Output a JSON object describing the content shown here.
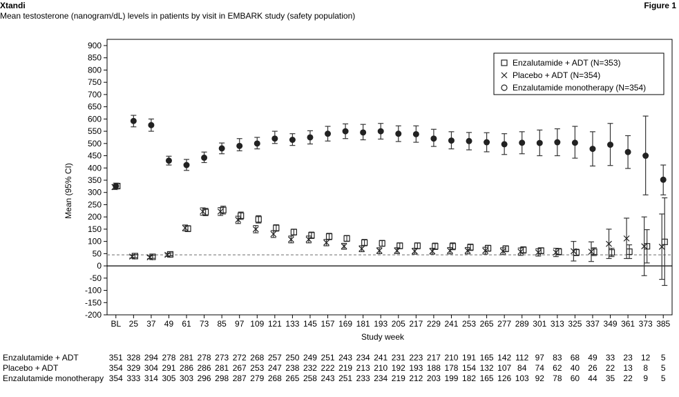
{
  "header": {
    "brand": "Xtandi",
    "subtitle": "Mean testosterone (nanogram/dL) levels in patients by visit in EMBARK study (safety population)",
    "figure_label": "Figure 1"
  },
  "chart_data": {
    "type": "scatter",
    "xlabel": "Study week",
    "ylabel": "Mean (95% CI)",
    "ylim": [
      -200,
      900
    ],
    "yticks": [
      900,
      850,
      800,
      750,
      700,
      650,
      600,
      550,
      500,
      450,
      400,
      350,
      300,
      250,
      200,
      150,
      100,
      50,
      0,
      -50,
      -100,
      -150,
      -200
    ],
    "xtick_labels": [
      "BL",
      "25",
      "37",
      "49",
      "61",
      "73",
      "85",
      "97",
      "109",
      "121",
      "133",
      "145",
      "157",
      "169",
      "181",
      "193",
      "205",
      "217",
      "229",
      "241",
      "253",
      "265",
      "277",
      "289",
      "301",
      "313",
      "325",
      "337",
      "349",
      "361",
      "373",
      "385"
    ],
    "x_positions": [
      13,
      25,
      37,
      49,
      61,
      73,
      85,
      97,
      109,
      121,
      133,
      145,
      157,
      169,
      181,
      193,
      205,
      217,
      229,
      241,
      253,
      265,
      277,
      289,
      301,
      313,
      325,
      337,
      349,
      361,
      373,
      385
    ],
    "reference_line": 45,
    "grid": false,
    "legend_position": "top-right",
    "series": [
      {
        "name": "Enzalutamide + ADT (N=353)",
        "marker": "square",
        "mean": [
          326,
          40,
          37,
          47,
          152,
          220,
          228,
          205,
          190,
          155,
          138,
          125,
          120,
          112,
          95,
          92,
          82,
          82,
          80,
          80,
          76,
          72,
          70,
          65,
          62,
          58,
          55,
          58,
          55,
          58,
          80,
          98
        ],
        "lower": [
          316,
          34,
          31,
          41,
          140,
          205,
          212,
          190,
          175,
          142,
          126,
          112,
          107,
          100,
          82,
          80,
          70,
          70,
          67,
          66,
          63,
          60,
          58,
          52,
          50,
          45,
          42,
          42,
          38,
          30,
          12,
          -80
        ],
        "upper": [
          336,
          46,
          43,
          53,
          164,
          235,
          244,
          220,
          205,
          168,
          150,
          138,
          133,
          124,
          108,
          104,
          94,
          94,
          93,
          94,
          89,
          84,
          82,
          78,
          74,
          71,
          68,
          74,
          72,
          86,
          148,
          278
        ]
      },
      {
        "name": "Placebo + ADT (N=354)",
        "marker": "x",
        "mean": [
          322,
          38,
          35,
          45,
          155,
          222,
          222,
          188,
          150,
          130,
          108,
          108,
          95,
          80,
          70,
          62,
          62,
          60,
          60,
          62,
          62,
          62,
          60,
          58,
          55,
          55,
          60,
          58,
          90,
          112,
          80,
          78
        ],
        "lower": [
          312,
          32,
          29,
          39,
          143,
          207,
          206,
          173,
          135,
          116,
          94,
          94,
          82,
          68,
          58,
          50,
          50,
          48,
          48,
          49,
          49,
          48,
          46,
          43,
          40,
          38,
          20,
          18,
          30,
          30,
          -40,
          -55
        ],
        "upper": [
          332,
          44,
          41,
          51,
          167,
          237,
          238,
          203,
          165,
          144,
          122,
          122,
          108,
          92,
          82,
          74,
          74,
          72,
          72,
          75,
          75,
          76,
          74,
          73,
          70,
          72,
          100,
          98,
          150,
          195,
          200,
          212
        ]
      },
      {
        "name": "Enzalutamide monotherapy (N=354)",
        "marker": "circle-filled",
        "mean": [
          326,
          592,
          575,
          430,
          412,
          442,
          480,
          490,
          500,
          520,
          515,
          525,
          540,
          550,
          545,
          550,
          540,
          538,
          520,
          512,
          510,
          505,
          497,
          503,
          502,
          505,
          503,
          478,
          495,
          465,
          450,
          352
        ],
        "lower": [
          314,
          568,
          550,
          412,
          390,
          422,
          458,
          470,
          478,
          500,
          492,
          498,
          510,
          520,
          515,
          518,
          508,
          505,
          488,
          478,
          474,
          466,
          455,
          458,
          450,
          450,
          440,
          408,
          410,
          398,
          290,
          290
        ],
        "upper": [
          338,
          615,
          600,
          448,
          435,
          465,
          502,
          520,
          525,
          550,
          540,
          552,
          570,
          580,
          578,
          582,
          572,
          572,
          558,
          548,
          545,
          544,
          540,
          548,
          555,
          560,
          570,
          548,
          582,
          532,
          612,
          412
        ]
      }
    ]
  },
  "risk_table": {
    "rows": [
      {
        "label": "Enzalutamide + ADT",
        "values": [
          "351",
          "328",
          "294",
          "278",
          "281",
          "278",
          "273",
          "272",
          "268",
          "257",
          "250",
          "249",
          "251",
          "243",
          "234",
          "241",
          "231",
          "223",
          "217",
          "210",
          "191",
          "165",
          "142",
          "112",
          "97",
          "83",
          "68",
          "49",
          "33",
          "23",
          "12",
          "5"
        ]
      },
      {
        "label": "Placebo + ADT",
        "values": [
          "354",
          "329",
          "304",
          "291",
          "286",
          "286",
          "281",
          "267",
          "253",
          "247",
          "238",
          "232",
          "222",
          "219",
          "213",
          "210",
          "192",
          "193",
          "188",
          "178",
          "154",
          "132",
          "107",
          "84",
          "74",
          "62",
          "40",
          "26",
          "22",
          "13",
          "8",
          "5"
        ]
      },
      {
        "label": "Enzalutamide monotherapy",
        "values": [
          "354",
          "333",
          "314",
          "305",
          "303",
          "296",
          "298",
          "287",
          "279",
          "268",
          "265",
          "258",
          "243",
          "251",
          "233",
          "234",
          "219",
          "212",
          "203",
          "199",
          "182",
          "165",
          "126",
          "103",
          "92",
          "78",
          "60",
          "44",
          "35",
          "22",
          "9",
          "5"
        ]
      }
    ]
  }
}
